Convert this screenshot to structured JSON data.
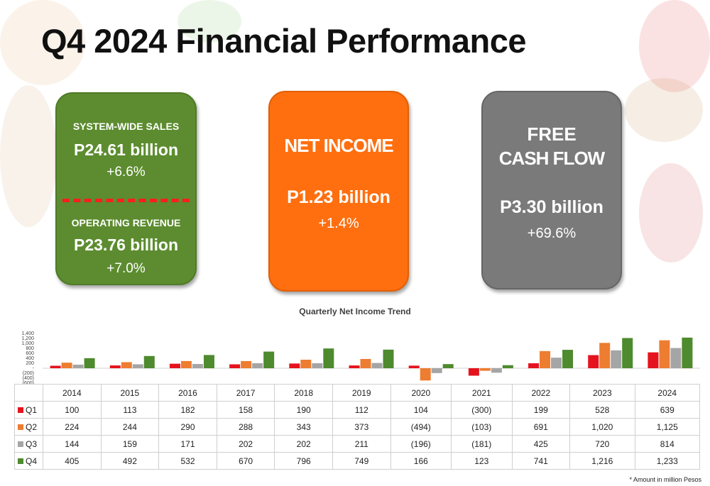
{
  "title": "Q4 2024 Financial Performance",
  "cards": {
    "system_wide": {
      "label": "SYSTEM-WIDE SALES",
      "value": "P24.61 billion",
      "change": "+6.6%"
    },
    "operating_revenue": {
      "label": "OPERATING REVENUE",
      "value": "P23.76 billion",
      "change": "+7.0%"
    },
    "net_income": {
      "label": "NET INCOME",
      "value": "P1.23 billion",
      "change": "+1.4%"
    },
    "free_cash_flow": {
      "label_line1": "FREE",
      "label_line2": "CASH FLOW",
      "value": "P3.30 billion",
      "change": "+69.6%"
    }
  },
  "colors": {
    "green_card": "#5c8c2f",
    "orange_card": "#ff6f0f",
    "gray_card": "#7a7a7a",
    "q1": "#e5131d",
    "q2": "#ed7d31",
    "q3": "#a5a5a5",
    "q4": "#4e8a2e"
  },
  "chart_data": {
    "type": "bar",
    "title": "Quarterly Net Income Trend",
    "categories": [
      "2014",
      "2015",
      "2016",
      "2017",
      "2018",
      "2019",
      "2020",
      "2021",
      "2022",
      "2023",
      "2024"
    ],
    "series": [
      {
        "name": "Q1",
        "values": [
          100,
          113,
          182,
          158,
          190,
          112,
          104,
          -300,
          199,
          528,
          639
        ],
        "labels": [
          "100",
          "113",
          "182",
          "158",
          "190",
          "112",
          "104",
          "(300)",
          "199",
          "528",
          "639"
        ]
      },
      {
        "name": "Q2",
        "values": [
          224,
          244,
          290,
          288,
          343,
          373,
          -494,
          -103,
          691,
          1020,
          1125
        ],
        "labels": [
          "224",
          "244",
          "290",
          "288",
          "343",
          "373",
          "(494)",
          "(103)",
          "691",
          "1,020",
          "1,125"
        ]
      },
      {
        "name": "Q3",
        "values": [
          144,
          159,
          171,
          202,
          202,
          211,
          -196,
          -181,
          425,
          720,
          814
        ],
        "labels": [
          "144",
          "159",
          "171",
          "202",
          "202",
          "211",
          "(196)",
          "(181)",
          "425",
          "720",
          "814"
        ]
      },
      {
        "name": "Q4",
        "values": [
          405,
          492,
          532,
          670,
          796,
          749,
          166,
          123,
          741,
          1216,
          1233
        ],
        "labels": [
          "405",
          "492",
          "532",
          "670",
          "796",
          "749",
          "166",
          "123",
          "741",
          "1,216",
          "1,233"
        ]
      }
    ],
    "y_ticks": [
      "1,400",
      "1,200",
      "1,000",
      "800",
      "600",
      "400",
      "200",
      "-",
      "(200)",
      "(400)",
      "(600)"
    ],
    "ylim": [
      -600,
      1400
    ],
    "grid": false,
    "note": "* Amount in million Pesos"
  }
}
